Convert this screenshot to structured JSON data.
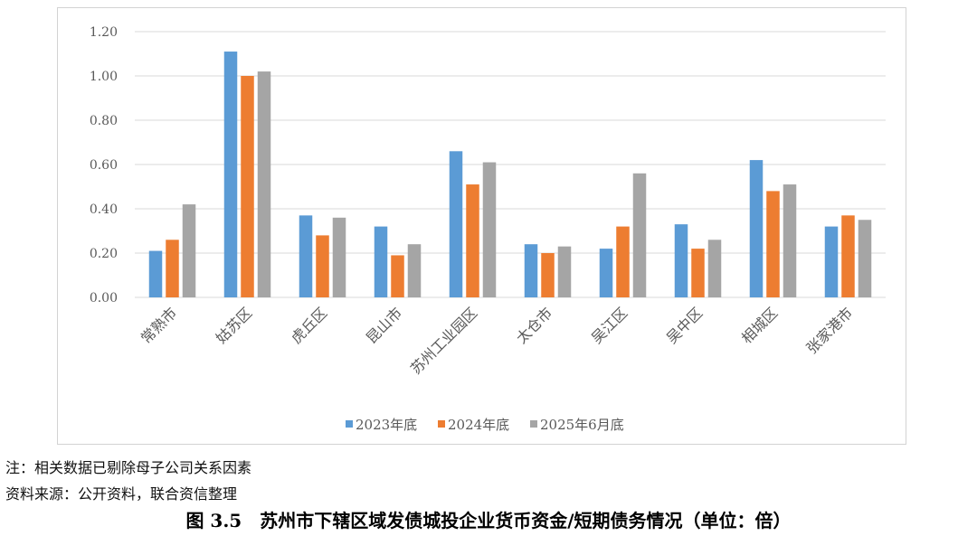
{
  "chart_data": {
    "type": "bar",
    "categories": [
      "常熟市",
      "姑苏区",
      "虎丘区",
      "昆山市",
      "苏州工业园区",
      "太仓市",
      "吴江区",
      "吴中区",
      "相城区",
      "张家港市"
    ],
    "series": [
      {
        "name": "2023年底",
        "color": "#5B9BD5",
        "values": [
          0.21,
          1.11,
          0.37,
          0.32,
          0.66,
          0.24,
          0.22,
          0.33,
          0.62,
          0.32
        ]
      },
      {
        "name": "2024年底",
        "color": "#ED7D31",
        "values": [
          0.26,
          1.0,
          0.28,
          0.19,
          0.51,
          0.2,
          0.32,
          0.22,
          0.48,
          0.37
        ]
      },
      {
        "name": "2025年6月底",
        "color": "#A5A5A5",
        "values": [
          0.42,
          1.02,
          0.36,
          0.24,
          0.61,
          0.23,
          0.56,
          0.26,
          0.51,
          0.35
        ]
      }
    ],
    "yticks": [
      "0.00",
      "0.20",
      "0.40",
      "0.60",
      "0.80",
      "1.00",
      "1.20"
    ],
    "ylim": [
      0,
      1.2
    ],
    "grid": true,
    "legend_position": "bottom"
  },
  "notes": {
    "line1": "注：相关数据已剔除母子公司关系因素",
    "line2": "资料来源：公开资料，联合资信整理"
  },
  "caption": "图 3.5　苏州市下辖区域发债城投企业货币资金/短期债务情况（单位：倍）"
}
